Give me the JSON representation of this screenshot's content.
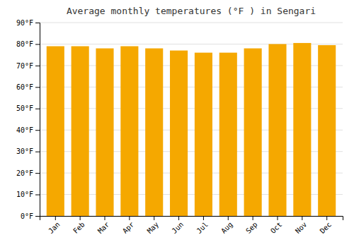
{
  "chart_data": {
    "type": "bar",
    "title": "Average monthly temperatures (°F ) in Sengari",
    "categories": [
      "Jan",
      "Feb",
      "Mar",
      "Apr",
      "May",
      "Jun",
      "Jul",
      "Aug",
      "Sep",
      "Oct",
      "Nov",
      "Dec"
    ],
    "values": [
      79,
      79,
      78,
      79,
      78,
      77,
      76,
      76,
      78,
      80,
      80.5,
      79.5
    ],
    "color": "#F5A800",
    "ylim": [
      0,
      90
    ],
    "yticks": [
      {
        "value": 0,
        "label": "0°F"
      },
      {
        "value": 10,
        "label": "10°F"
      },
      {
        "value": 20,
        "label": "20°F"
      },
      {
        "value": 30,
        "label": "30°F"
      },
      {
        "value": 40,
        "label": "40°F"
      },
      {
        "value": 50,
        "label": "50°F"
      },
      {
        "value": 60,
        "label": "60°F"
      },
      {
        "value": 70,
        "label": "70°F"
      },
      {
        "value": 80,
        "label": "80°F"
      },
      {
        "value": 90,
        "label": "90°F"
      }
    ],
    "grid": true
  }
}
